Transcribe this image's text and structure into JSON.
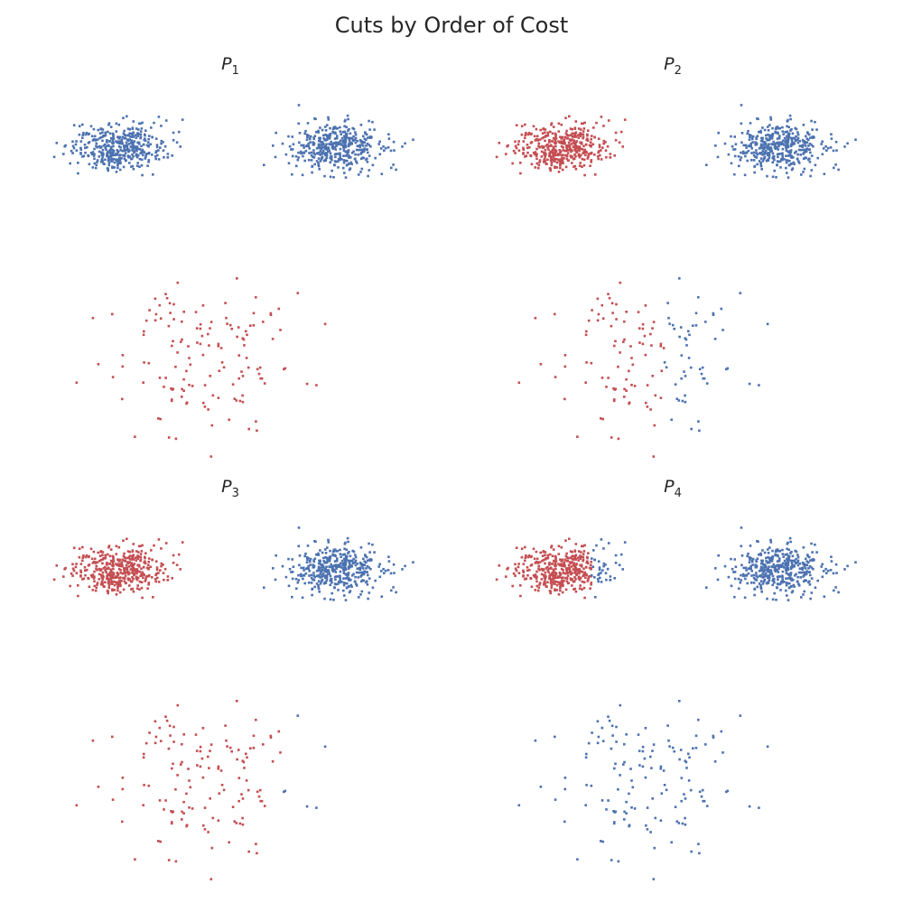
{
  "title": "Cuts by Order of Cost",
  "colors": {
    "side_a": "#c44e52",
    "side_b": "#4c72b0"
  },
  "chart_data": [
    {
      "type": "scatter",
      "title": "P",
      "subscript": "1",
      "clusters": [
        {
          "name": "upper-left",
          "center": [
            -2.6,
            2.2
          ],
          "spread": [
            0.55,
            0.25
          ],
          "n": 420,
          "assignment": "side_b"
        },
        {
          "name": "upper-right",
          "center": [
            2.5,
            2.2
          ],
          "spread": [
            0.55,
            0.28
          ],
          "n": 420,
          "assignment": "side_b"
        },
        {
          "name": "lower",
          "center": [
            -0.6,
            -2.4
          ],
          "spread": [
            1.05,
            0.85
          ],
          "n": 140,
          "assignment": "side_a"
        }
      ],
      "xlim": [
        -5,
        5
      ],
      "ylim": [
        -5,
        3.5
      ],
      "grid": false
    },
    {
      "type": "scatter",
      "title": "P",
      "subscript": "2",
      "clusters": [
        {
          "name": "upper-left",
          "center": [
            -2.6,
            2.2
          ],
          "spread": [
            0.55,
            0.25
          ],
          "n": 420,
          "assignment": "side_a"
        },
        {
          "name": "upper-right",
          "center": [
            2.5,
            2.2
          ],
          "spread": [
            0.55,
            0.28
          ],
          "n": 420,
          "assignment": "side_b"
        },
        {
          "name": "lower",
          "center": [
            -0.6,
            -2.4
          ],
          "spread": [
            1.05,
            0.85
          ],
          "n": 140,
          "assignment": "split",
          "split_x": -0.2,
          "left": "side_a",
          "right": "side_b"
        }
      ],
      "xlim": [
        -5,
        5
      ],
      "ylim": [
        -5,
        3.5
      ],
      "grid": false
    },
    {
      "type": "scatter",
      "title": "P",
      "subscript": "3",
      "clusters": [
        {
          "name": "upper-left",
          "center": [
            -2.6,
            2.2
          ],
          "spread": [
            0.55,
            0.25
          ],
          "n": 420,
          "assignment": "side_a"
        },
        {
          "name": "upper-right",
          "center": [
            2.5,
            2.2
          ],
          "spread": [
            0.55,
            0.28
          ],
          "n": 420,
          "assignment": "side_b"
        },
        {
          "name": "lower",
          "center": [
            -0.6,
            -2.4
          ],
          "spread": [
            1.05,
            0.85
          ],
          "n": 140,
          "assignment": "split",
          "split_x": 1.2,
          "left": "side_a",
          "right": "side_b"
        }
      ],
      "xlim": [
        -5,
        5
      ],
      "ylim": [
        -5,
        3.5
      ],
      "grid": false
    },
    {
      "type": "scatter",
      "title": "P",
      "subscript": "4",
      "clusters": [
        {
          "name": "upper-left",
          "center": [
            -2.6,
            2.2
          ],
          "spread": [
            0.55,
            0.25
          ],
          "n": 420,
          "assignment": "split",
          "split_x": -1.9,
          "left": "side_a",
          "right": "side_b"
        },
        {
          "name": "upper-right",
          "center": [
            2.5,
            2.2
          ],
          "spread": [
            0.55,
            0.28
          ],
          "n": 420,
          "assignment": "side_b"
        },
        {
          "name": "lower",
          "center": [
            -0.6,
            -2.4
          ],
          "spread": [
            1.05,
            0.85
          ],
          "n": 140,
          "assignment": "side_b"
        }
      ],
      "xlim": [
        -5,
        5
      ],
      "ylim": [
        -5,
        3.5
      ],
      "grid": false
    }
  ]
}
